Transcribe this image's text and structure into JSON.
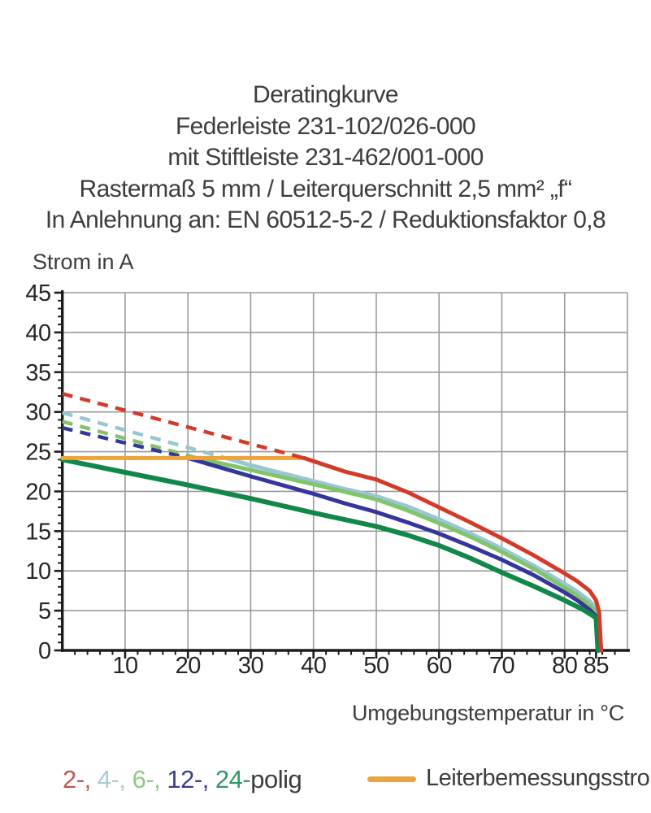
{
  "title": {
    "lines": [
      "Deratingkurve",
      "Federleiste 231-102/026-000",
      "mit Stiftleiste 231-462/001-000",
      "Rastermaß 5 mm / Leiterquerschnitt 2,5 mm² „f“",
      "In Anlehnung an: EN 60512-5-2 / Reduktionsfaktor 0,8"
    ]
  },
  "chart": {
    "y_axis_title": "Strom in A",
    "x_axis_title": "Umgebungstemperatur in °C"
  },
  "chart_data": {
    "type": "line",
    "title": "Deratingkurve Federleiste 231-102/026-000 mit Stiftleiste 231-462/001-000",
    "xlabel": "Umgebungstemperatur in °C",
    "ylabel": "Strom in A",
    "xlim": [
      0,
      90
    ],
    "ylim": [
      0,
      45
    ],
    "x_major_ticks": [
      10,
      20,
      30,
      40,
      50,
      60,
      70,
      80,
      85
    ],
    "x_gridline_ticks": [
      10,
      20,
      30,
      40,
      50,
      60,
      70,
      80
    ],
    "y_major_ticks": [
      0,
      5,
      10,
      15,
      20,
      25,
      30,
      35,
      40,
      45
    ],
    "x_minor_step": 2,
    "y_minor_step": 1,
    "grid": true,
    "legend_position": "bottom",
    "rated_current_line": {
      "name": "Leiterbemessungsstrom",
      "color": "#eda43c",
      "value_A": 24.2,
      "points": [
        [
          0,
          24.2
        ],
        [
          38.5,
          24.2
        ]
      ],
      "draw_order": 5
    },
    "series": [
      {
        "name": "2-polig",
        "color": "#d23b2a",
        "style": "dashed-above-rated-then-solid",
        "draw_order": 6,
        "dashed_points": [
          [
            0,
            32.3
          ],
          [
            38.5,
            24.2
          ]
        ],
        "solid_points": [
          [
            38.5,
            24.2
          ],
          [
            45,
            22.5
          ],
          [
            50,
            21.5
          ],
          [
            55,
            19.9
          ],
          [
            60,
            18.0
          ],
          [
            65,
            16.1
          ],
          [
            70,
            14.1
          ],
          [
            75,
            12.0
          ],
          [
            80,
            9.7
          ],
          [
            82,
            8.7
          ],
          [
            84,
            7.5
          ],
          [
            85,
            6.3
          ],
          [
            85.5,
            4.8
          ],
          [
            85.8,
            0
          ]
        ]
      },
      {
        "name": "4-polig",
        "color": "#96c8d2",
        "style": "dashed-above-rated-then-solid",
        "draw_order": 1,
        "dashed_points": [
          [
            0,
            29.9
          ],
          [
            26,
            24.2
          ]
        ],
        "solid_points": [
          [
            26,
            24.2
          ],
          [
            30,
            23.3
          ],
          [
            35,
            22.3
          ],
          [
            40,
            21.3
          ],
          [
            45,
            20.3
          ],
          [
            50,
            19.4
          ],
          [
            55,
            18.1
          ],
          [
            60,
            16.5
          ],
          [
            65,
            14.7
          ],
          [
            70,
            12.8
          ],
          [
            75,
            10.7
          ],
          [
            80,
            8.4
          ],
          [
            82,
            7.4
          ],
          [
            84,
            6.2
          ],
          [
            85,
            5.4
          ],
          [
            85.6,
            0
          ]
        ]
      },
      {
        "name": "6-polig",
        "color": "#82c36c",
        "style": "dashed-above-rated-then-solid",
        "draw_order": 2,
        "dashed_points": [
          [
            0,
            28.8
          ],
          [
            21.5,
            24.2
          ]
        ],
        "solid_points": [
          [
            21.5,
            24.2
          ],
          [
            30,
            22.7
          ],
          [
            40,
            20.9
          ],
          [
            50,
            19.0
          ],
          [
            55,
            17.6
          ],
          [
            60,
            16.0
          ],
          [
            65,
            14.3
          ],
          [
            70,
            12.4
          ],
          [
            75,
            10.3
          ],
          [
            80,
            7.9
          ],
          [
            82,
            6.9
          ],
          [
            84,
            5.7
          ],
          [
            85,
            4.9
          ],
          [
            85.5,
            0
          ]
        ]
      },
      {
        "name": "12-polig",
        "color": "#35359b",
        "style": "dashed-above-rated-then-solid",
        "draw_order": 3,
        "dashed_points": [
          [
            0,
            28.0
          ],
          [
            20,
            24.2
          ]
        ],
        "solid_points": [
          [
            20,
            24.2
          ],
          [
            30,
            21.9
          ],
          [
            40,
            19.7
          ],
          [
            45,
            18.5
          ],
          [
            50,
            17.4
          ],
          [
            55,
            16.1
          ],
          [
            60,
            14.7
          ],
          [
            65,
            13.1
          ],
          [
            70,
            11.4
          ],
          [
            75,
            9.5
          ],
          [
            80,
            7.3
          ],
          [
            82,
            6.3
          ],
          [
            84,
            5.1
          ],
          [
            85,
            4.3
          ],
          [
            85.4,
            0
          ]
        ]
      },
      {
        "name": "24-polig",
        "color": "#12874a",
        "style": "solid",
        "draw_order": 4,
        "solid_points": [
          [
            0,
            24.0
          ],
          [
            10,
            22.4
          ],
          [
            20,
            20.8
          ],
          [
            30,
            19.1
          ],
          [
            40,
            17.3
          ],
          [
            50,
            15.6
          ],
          [
            55,
            14.5
          ],
          [
            60,
            13.2
          ],
          [
            65,
            11.6
          ],
          [
            70,
            9.8
          ],
          [
            75,
            8.1
          ],
          [
            80,
            6.3
          ],
          [
            83,
            5.1
          ],
          [
            85,
            4.1
          ],
          [
            85.3,
            0
          ]
        ]
      }
    ]
  },
  "legend": {
    "pole_items": [
      {
        "label": "2-,",
        "color": "#c4564d"
      },
      {
        "label": "4-,",
        "color": "#a9ccd6"
      },
      {
        "label": "6-,",
        "color": "#8fc98a"
      },
      {
        "label": "12-,",
        "color": "#3c3c8f"
      },
      {
        "label": "24-",
        "color": "#2f9a68"
      }
    ],
    "suffix": "polig",
    "rated": {
      "label": "Leiterbemessungsstrom",
      "color": "#eda43c"
    }
  },
  "colors": {
    "background": "#ffffff",
    "text": "#3d3d3d",
    "tick_label": "#262626",
    "gridline": "#9a9a9a",
    "axis": "#1c1c1c"
  }
}
